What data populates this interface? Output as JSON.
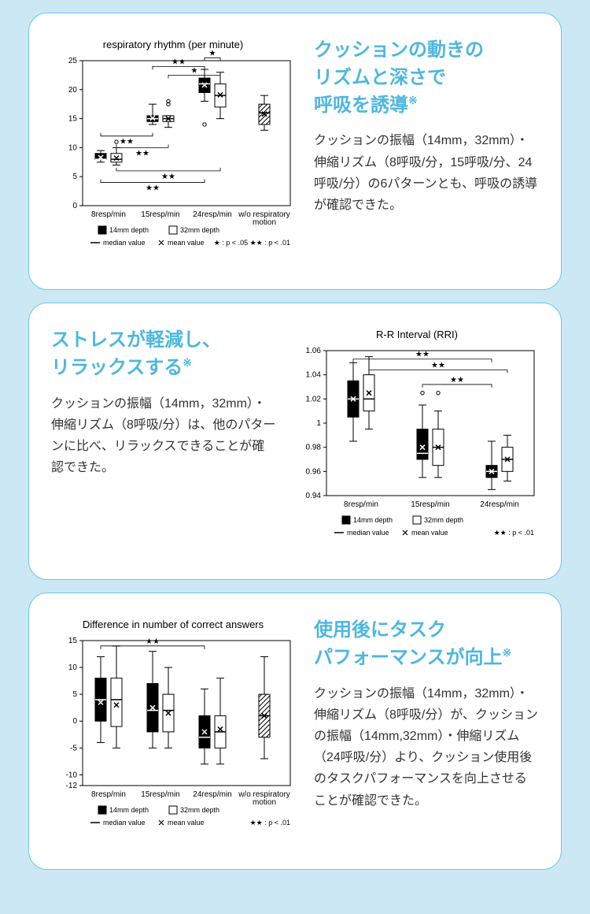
{
  "cards": [
    {
      "heading": "クッションの動きの\nリズムと深さで\n呼吸を誘導",
      "asterisk": "※",
      "body": "クッションの振幅（14mm，32mm）・伸縮リズム（8呼吸/分，15呼吸/分、24呼吸/分）の6パターンとも、呼吸の誘導が確認できた。",
      "chart": {
        "type": "boxplot",
        "title": "respiratory rhythm (per minute)",
        "ylim": [
          0,
          25
        ],
        "ytick_step": 5,
        "categories": [
          "8resp/min",
          "15resp/min",
          "24resp/min",
          "w/o respiratory\nmotion"
        ],
        "legend_depth": [
          "14mm depth",
          "32mm depth"
        ],
        "legend_stat": [
          "median value",
          "mean value"
        ],
        "sig_note": "★ : p < .05    ★★ : p < .01",
        "background": "#ffffff",
        "axis_color": "#000000",
        "grid_color": "#cccccc",
        "boxes": [
          {
            "group": 0,
            "depth": 0,
            "fill": "#000000",
            "median": 8,
            "q1": 8,
            "q3": 9,
            "wlo": 7.5,
            "whi": 9.5,
            "mean": 8.3
          },
          {
            "group": 0,
            "depth": 1,
            "fill": "#ffffff",
            "median": 8,
            "q1": 7.5,
            "q3": 9,
            "wlo": 7,
            "whi": 10,
            "mean": 8.2,
            "outliers": [
              11
            ]
          },
          {
            "group": 1,
            "depth": 0,
            "fill": "#000000",
            "median": 15,
            "q1": 14.5,
            "q3": 15.5,
            "wlo": 14,
            "whi": 17.5,
            "mean": 15.1
          },
          {
            "group": 1,
            "depth": 1,
            "fill": "#ffffff",
            "median": 15,
            "q1": 14.5,
            "q3": 15.5,
            "wlo": 13.5,
            "whi": 15.5,
            "mean": 15.0,
            "outliers": [
              17.5,
              18
            ]
          },
          {
            "group": 2,
            "depth": 0,
            "fill": "#000000",
            "median": 21,
            "q1": 19.5,
            "q3": 22,
            "wlo": 18,
            "whi": 23.5,
            "mean": 20.8,
            "outliers": [
              14
            ]
          },
          {
            "group": 2,
            "depth": 1,
            "fill": "#ffffff",
            "median": 19,
            "q1": 17,
            "q3": 21,
            "wlo": 15,
            "whi": 23,
            "mean": 19.1
          },
          {
            "group": 3,
            "depth": null,
            "fill": "hatch",
            "median": 16,
            "q1": 14,
            "q3": 17.5,
            "wlo": 13,
            "whi": 19,
            "mean": 15.8
          }
        ],
        "sig_brackets": [
          {
            "from": 0,
            "to": 2,
            "y": 12,
            "label": "★★",
            "pos": "below"
          },
          {
            "from": 0,
            "to": 4,
            "y": 4,
            "label": "★★",
            "pos": "below"
          },
          {
            "from": 1,
            "to": 3,
            "y": 10,
            "label": "★★",
            "pos": "below"
          },
          {
            "from": 1,
            "to": 5,
            "y": 6,
            "label": "★★",
            "pos": "below"
          },
          {
            "from": 2,
            "to": 4,
            "y": 24,
            "label": "★★",
            "pos": "above"
          },
          {
            "from": 3,
            "to": 5,
            "y": 22.5,
            "label": "★",
            "pos": "above"
          },
          {
            "from": 4,
            "to": 5,
            "y": 25.5,
            "label": "★",
            "pos": "above"
          }
        ]
      }
    },
    {
      "heading": "ストレスが軽減し、\nリラックスする",
      "asterisk": "※",
      "body": "クッションの振幅（14mm，32mm）・伸縮リズム（8呼吸/分）は、他のパターンに比べ、リラックスできることが確認できた。",
      "chart": {
        "type": "boxplot",
        "title": "R-R Interval (RRI)",
        "ylim": [
          0.94,
          1.06
        ],
        "ytick_step": 0.02,
        "categories": [
          "8resp/min",
          "15resp/min",
          "24resp/min"
        ],
        "legend_depth": [
          "14mm depth",
          "32mm depth"
        ],
        "legend_stat": [
          "median value",
          "mean value"
        ],
        "sig_note": "★★ : p < .01",
        "background": "#ffffff",
        "axis_color": "#000000",
        "boxes": [
          {
            "group": 0,
            "depth": 0,
            "fill": "#000000",
            "median": 1.02,
            "q1": 1.005,
            "q3": 1.035,
            "wlo": 0.985,
            "whi": 1.05,
            "mean": 1.02
          },
          {
            "group": 0,
            "depth": 1,
            "fill": "#ffffff",
            "median": 1.02,
            "q1": 1.01,
            "q3": 1.04,
            "wlo": 0.995,
            "whi": 1.055,
            "mean": 1.025
          },
          {
            "group": 1,
            "depth": 0,
            "fill": "#000000",
            "median": 0.975,
            "q1": 0.97,
            "q3": 0.995,
            "wlo": 0.955,
            "whi": 1.015,
            "mean": 0.98,
            "outliers": [
              1.025
            ]
          },
          {
            "group": 1,
            "depth": 1,
            "fill": "#ffffff",
            "median": 0.98,
            "q1": 0.965,
            "q3": 0.995,
            "wlo": 0.955,
            "whi": 1.01,
            "mean": 0.98,
            "outliers": [
              1.025
            ]
          },
          {
            "group": 2,
            "depth": 0,
            "fill": "#000000",
            "median": 0.96,
            "q1": 0.955,
            "q3": 0.965,
            "wlo": 0.945,
            "whi": 0.985,
            "mean": 0.96
          },
          {
            "group": 2,
            "depth": 1,
            "fill": "#ffffff",
            "median": 0.97,
            "q1": 0.96,
            "q3": 0.98,
            "wlo": 0.952,
            "whi": 0.99,
            "mean": 0.97
          }
        ],
        "sig_brackets": [
          {
            "from": 0,
            "to": 4,
            "y": 1.053,
            "label": "★★",
            "pos": "above"
          },
          {
            "from": 1,
            "to": 5,
            "y": 1.044,
            "label": "★★",
            "pos": "above"
          },
          {
            "from": 2,
            "to": 4,
            "y": 1.032,
            "label": "★★",
            "pos": "above"
          }
        ]
      }
    },
    {
      "heading": "使用後にタスク\nパフォーマンスが向上",
      "asterisk": "※",
      "body": "クッションの振幅（14mm，32mm）・伸縮リズム（8呼吸/分）が、クッションの振幅（14mm,32mm）・伸縮リズム（24呼吸/分）より、クッション使用後のタスクパフォーマンスを向上させることが確認できた。",
      "chart": {
        "type": "boxplot",
        "title": "Difference in number of correct answers",
        "ylim": [
          -12,
          15
        ],
        "yticks": [
          -12,
          -10,
          -5,
          0,
          5,
          10,
          15
        ],
        "categories": [
          "8resp/min",
          "15resp/min",
          "24resp/min",
          "w/o respiratory\nmotion"
        ],
        "legend_depth": [
          "14mm depth",
          "32mm depth"
        ],
        "legend_stat": [
          "median value",
          "mean value"
        ],
        "sig_note": "★★ : p < .01",
        "background": "#ffffff",
        "axis_color": "#000000",
        "boxes": [
          {
            "group": 0,
            "depth": 0,
            "fill": "#000000",
            "median": 4,
            "q1": 0,
            "q3": 8,
            "wlo": -4,
            "whi": 12,
            "mean": 3.5
          },
          {
            "group": 0,
            "depth": 1,
            "fill": "#ffffff",
            "median": 4,
            "q1": -1,
            "q3": 8,
            "wlo": -5,
            "whi": 14,
            "mean": 3
          },
          {
            "group": 1,
            "depth": 0,
            "fill": "#000000",
            "median": 2,
            "q1": -2,
            "q3": 7,
            "wlo": -5,
            "whi": 13,
            "mean": 2.5
          },
          {
            "group": 1,
            "depth": 1,
            "fill": "#ffffff",
            "median": 2,
            "q1": -2,
            "q3": 5,
            "wlo": -5,
            "whi": 10,
            "mean": 1.5
          },
          {
            "group": 2,
            "depth": 0,
            "fill": "#000000",
            "median": -3,
            "q1": -5,
            "q3": 1,
            "wlo": -8,
            "whi": 6,
            "mean": -2
          },
          {
            "group": 2,
            "depth": 1,
            "fill": "#ffffff",
            "median": -2,
            "q1": -5,
            "q3": 1,
            "wlo": -8,
            "whi": 8,
            "mean": -1.5
          },
          {
            "group": 3,
            "depth": null,
            "fill": "hatch",
            "median": 1,
            "q1": -3,
            "q3": 5,
            "wlo": -7,
            "whi": 12,
            "mean": 1
          }
        ],
        "sig_brackets": [
          {
            "from": 0,
            "to": 4,
            "y": 14,
            "label": "★★",
            "pos": "above"
          }
        ]
      }
    }
  ]
}
